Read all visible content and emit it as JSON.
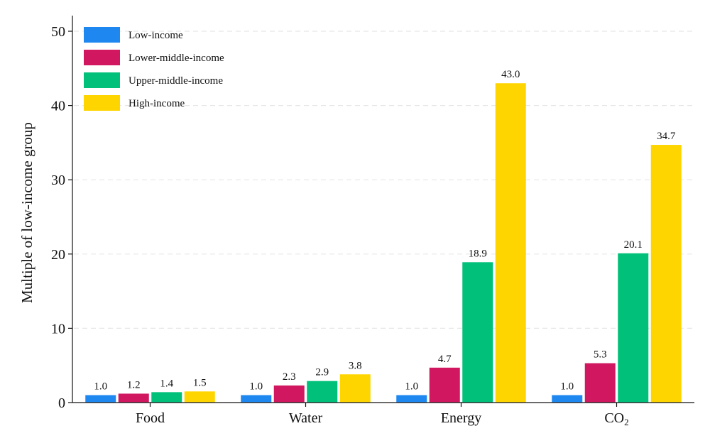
{
  "chart_data": {
    "type": "bar",
    "categories": [
      "Food",
      "Water",
      "Energy",
      "CO"
    ],
    "category_subscripts": [
      "",
      "",
      "",
      "2"
    ],
    "series": [
      {
        "name": "Low-income",
        "color": "#1e88f0",
        "values": [
          1.0,
          1.0,
          1.0,
          1.0
        ]
      },
      {
        "name": "Lower-middle-income",
        "color": "#d0175f",
        "values": [
          1.2,
          2.3,
          4.7,
          5.3
        ]
      },
      {
        "name": "Upper-middle-income",
        "color": "#00c07a",
        "values": [
          1.4,
          2.9,
          18.9,
          20.1
        ]
      },
      {
        "name": "High-income",
        "color": "#ffd500",
        "values": [
          1.5,
          3.8,
          43.0,
          34.7
        ]
      }
    ],
    "ylabel": "Multiple of low-income group",
    "xlabel": "",
    "ylim": [
      0,
      52
    ],
    "yticks": [
      0,
      10,
      20,
      30,
      40,
      50
    ],
    "grid": "horizontal-dashed",
    "legend_position": "top-left",
    "data_labels": true,
    "value_format_decimals": 1
  }
}
